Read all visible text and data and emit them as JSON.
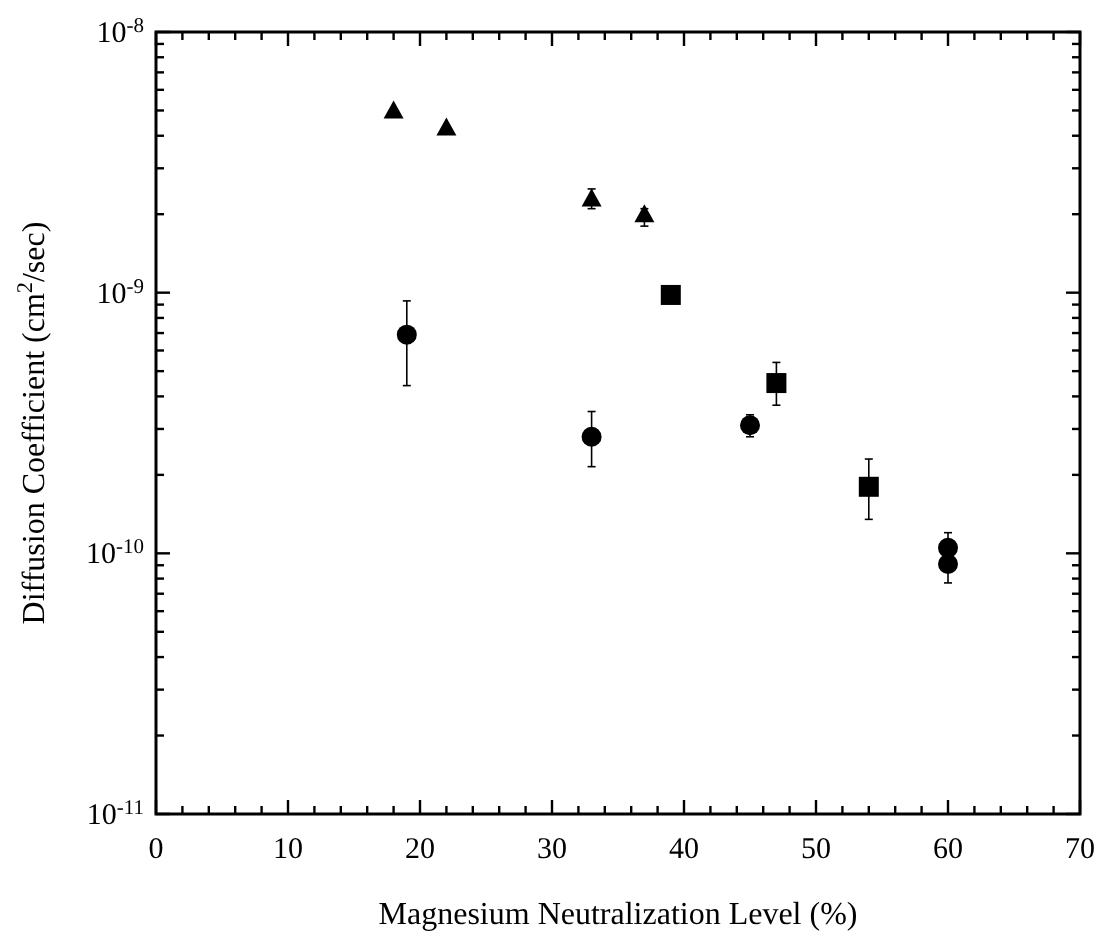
{
  "chart_data": {
    "type": "scatter",
    "xlabel": "Magnesium Neutralization Level (%)",
    "ylabel": "Diffusion Coefficient (cm$^{2}$/sec)",
    "log": "y",
    "xlim": [
      0,
      70
    ],
    "ylim": [
      1e-11,
      1e-08
    ],
    "xticks": [
      0,
      {
        "value": 2,
        "label": null
      },
      {
        "value": 4,
        "label": null
      },
      {
        "value": 6,
        "label": null
      },
      {
        "value": 8,
        "label": null
      },
      10,
      {
        "value": 12,
        "label": null
      },
      {
        "value": 14,
        "label": null
      },
      {
        "value": 16,
        "label": null
      },
      {
        "value": 18,
        "label": null
      },
      20,
      {
        "value": 22,
        "label": null
      },
      {
        "value": 24,
        "label": null
      },
      {
        "value": 26,
        "label": null
      },
      {
        "value": 28,
        "label": null
      },
      30,
      {
        "value": 32,
        "label": null
      },
      {
        "value": 34,
        "label": null
      },
      {
        "value": 36,
        "label": null
      },
      {
        "value": 38,
        "label": null
      },
      40,
      {
        "value": 42,
        "label": null
      },
      {
        "value": 44,
        "label": null
      },
      {
        "value": 46,
        "label": null
      },
      {
        "value": 48,
        "label": null
      },
      50,
      {
        "value": 52,
        "label": null
      },
      {
        "value": 54,
        "label": null
      },
      {
        "value": 56,
        "label": null
      },
      {
        "value": 58,
        "label": null
      },
      60,
      {
        "value": 62,
        "label": null
      },
      {
        "value": 64,
        "label": null
      },
      {
        "value": 66,
        "label": null
      },
      {
        "value": 68,
        "label": null
      },
      70
    ],
    "yticks": [
      {
        "value": 1e-11,
        "label": "10$^{-11}$"
      },
      {
        "value": 2e-11,
        "label": null
      },
      {
        "value": 3e-11,
        "label": null
      },
      {
        "value": 4e-11,
        "label": null
      },
      {
        "value": 5e-11,
        "label": null
      },
      {
        "value": 6e-11,
        "label": null
      },
      {
        "value": 7e-11,
        "label": null
      },
      {
        "value": 8e-11,
        "label": null
      },
      {
        "value": 9e-11,
        "label": null
      },
      {
        "value": 1e-10,
        "label": "10$^{-10}$"
      },
      {
        "value": 2e-10,
        "label": null
      },
      {
        "value": 3e-10,
        "label": null
      },
      {
        "value": 4e-10,
        "label": null
      },
      {
        "value": 5e-10,
        "label": null
      },
      {
        "value": 6e-10,
        "label": null
      },
      {
        "value": 7e-10,
        "label": null
      },
      {
        "value": 8e-10,
        "label": null
      },
      {
        "value": 9e-10,
        "label": null
      },
      {
        "value": 1e-09,
        "label": "10$^{-9}$"
      },
      {
        "value": 2e-09,
        "label": null
      },
      {
        "value": 3e-09,
        "label": null
      },
      {
        "value": 4e-09,
        "label": null
      },
      {
        "value": 5e-09,
        "label": null
      },
      {
        "value": 6e-09,
        "label": null
      },
      {
        "value": 7e-09,
        "label": null
      },
      {
        "value": 8e-09,
        "label": null
      },
      {
        "value": 9e-09,
        "label": null
      },
      {
        "value": 1e-08,
        "label": "10$^{-8}$"
      }
    ],
    "series": [
      {
        "color": "#000000",
        "marker": "triangle",
        "x": [
          18,
          22,
          33,
          37
        ],
        "values": [
          5e-09,
          4.3e-09,
          2.3e-09,
          2e-09
        ],
        "errors": [
          null,
          null,
          [
            2.1e-09,
            2.5e-09
          ],
          [
            1.8e-09,
            2.1e-09
          ]
        ]
      },
      {
        "color": "#000000",
        "marker": "circle",
        "x": [
          19,
          33,
          45,
          60,
          60
        ],
        "values": [
          6.9e-10,
          2.8e-10,
          3.1e-10,
          1.05e-10,
          9.1e-11
        ],
        "errors": [
          [
            4.4e-10,
            9.3e-10
          ],
          [
            2.15e-10,
            3.5e-10
          ],
          [
            2.8e-10,
            3.4e-10
          ],
          [
            1.05e-10,
            1.2e-10
          ],
          [
            7.7e-11,
            9.1e-11
          ]
        ]
      },
      {
        "color": "#000000",
        "marker": "square",
        "x": [
          39,
          47,
          54
        ],
        "values": [
          9.8e-10,
          4.5e-10,
          1.8e-10
        ],
        "errors": [
          [
            9.2e-10,
            1.05e-09
          ],
          [
            3.7e-10,
            5.4e-10
          ],
          [
            1.35e-10,
            2.3e-10
          ]
        ]
      }
    ]
  }
}
